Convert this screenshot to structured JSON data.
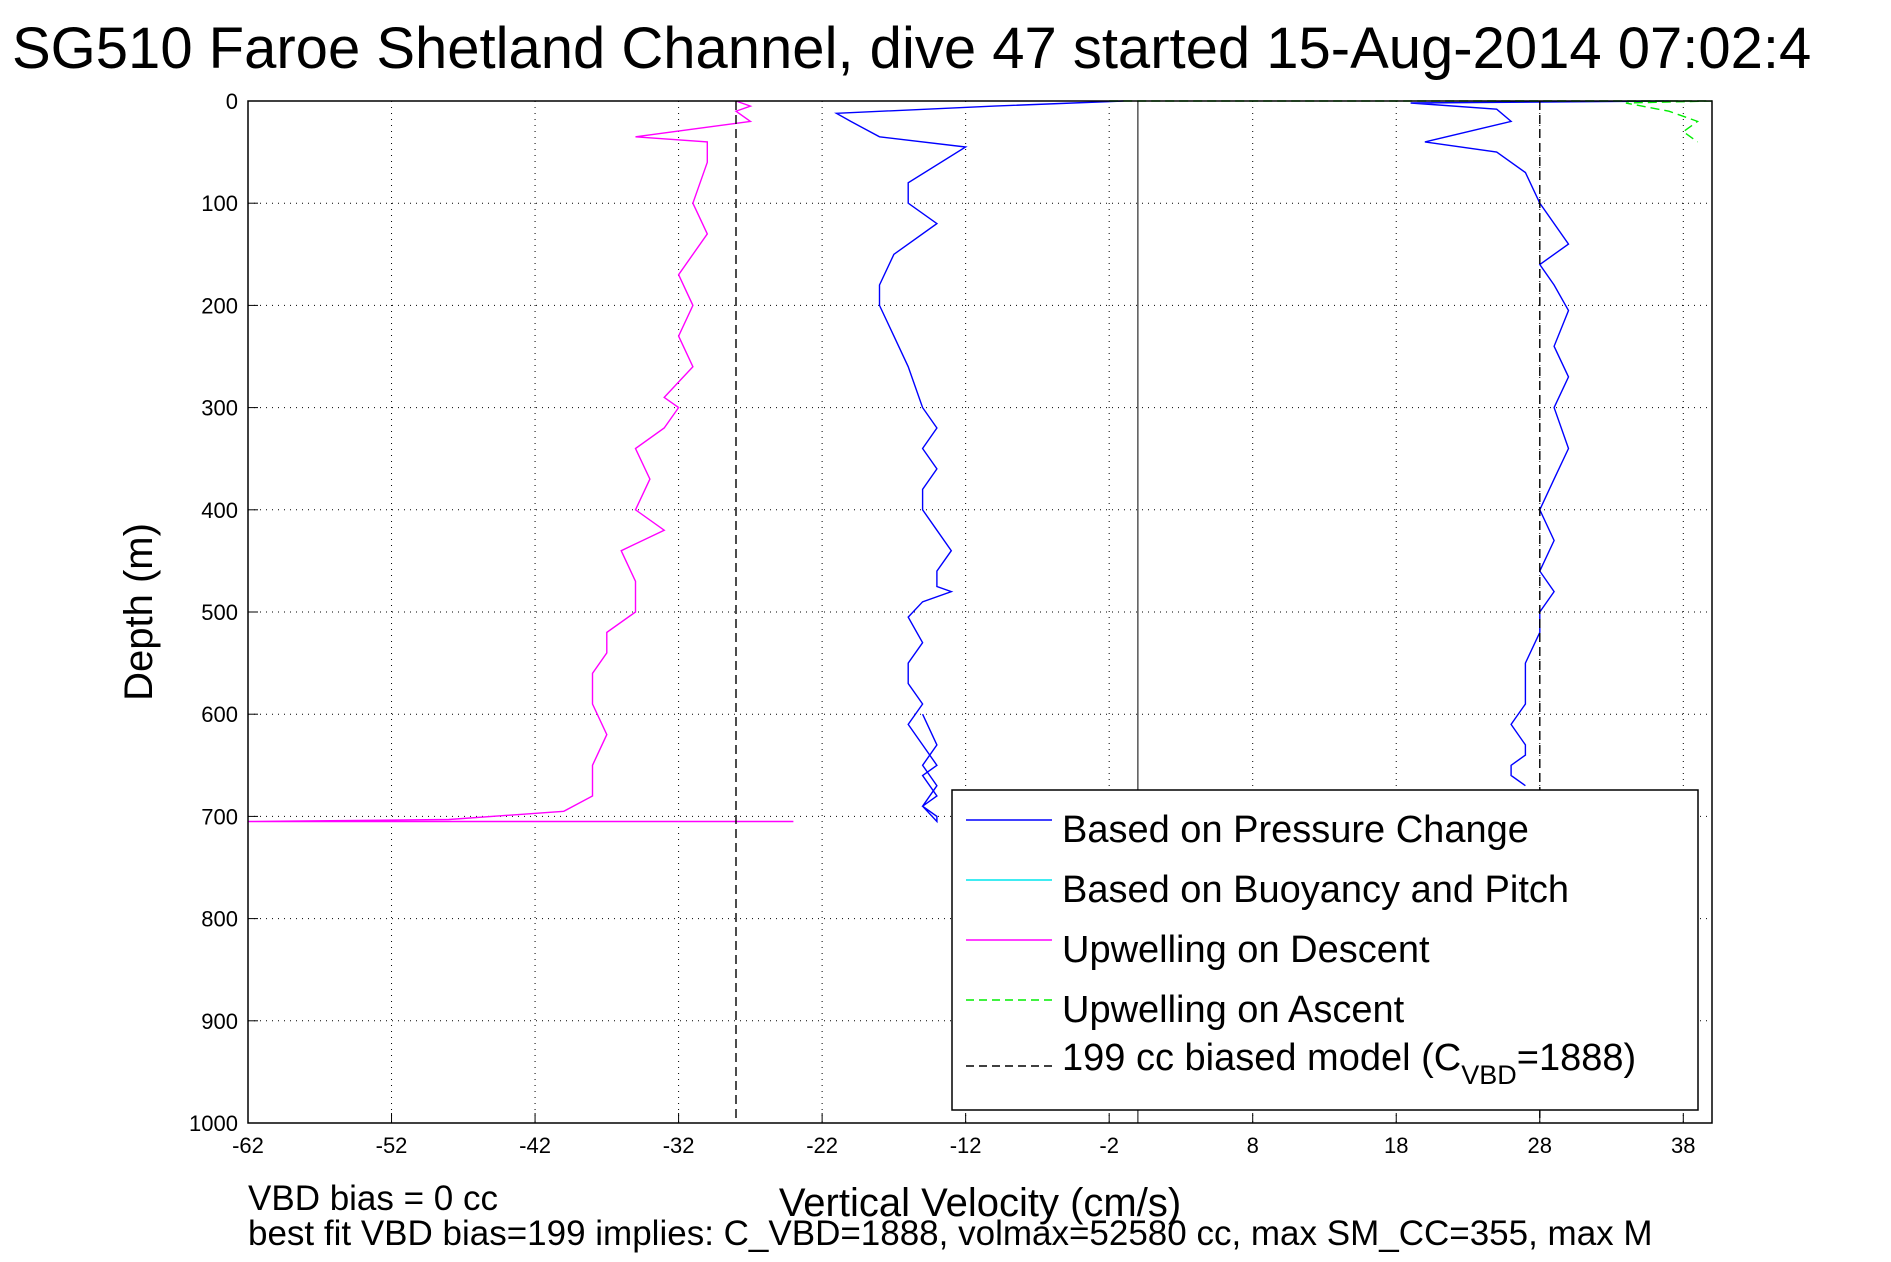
{
  "chart_data": {
    "type": "line",
    "title": "SG510 Faroe Shetland Channel, dive 47 started 15-Aug-2014 07:02:4",
    "xlabel": "Vertical Velocity (cm/s)",
    "ylabel": "Depth (m)",
    "xlim": [
      -62,
      40
    ],
    "ylim": [
      0,
      1000
    ],
    "y_reversed": true,
    "x_ticks": [
      "-62",
      "-52",
      "-42",
      "-32",
      "-22",
      "-12",
      "-2",
      "8",
      "18",
      "28",
      "38"
    ],
    "y_ticks": [
      "0",
      "100",
      "200",
      "300",
      "400",
      "500",
      "600",
      "700",
      "800",
      "900",
      "1000"
    ],
    "grid": true,
    "legend_position": "bottom-right",
    "legend": [
      {
        "label": "Based on Pressure Change",
        "color": "#0000ff",
        "style": "solid"
      },
      {
        "label": "Based on Buoyancy and Pitch",
        "color": "#00e5ee",
        "style": "solid"
      },
      {
        "label": "Upwelling on Descent",
        "color": "#ff00ff",
        "style": "solid"
      },
      {
        "label": "Upwelling on Ascent",
        "color": "#00ee00",
        "style": "dashed"
      },
      {
        "label_main": "199 cc biased model (C",
        "label_sub": "VBD",
        "label_tail": "=1888)",
        "color": "#000000",
        "style": "dashed"
      }
    ],
    "series": [
      {
        "name": "Based on Pressure Change (descent)",
        "color": "#0000ff",
        "x": [
          -1,
          -10,
          -21,
          -20,
          -18,
          -12,
          -16,
          -16,
          -14,
          -17,
          -18,
          -18,
          -17,
          -16,
          -15,
          -14,
          -15,
          -14,
          -15,
          -15,
          -14,
          -13,
          -14,
          -14,
          -13,
          -15,
          -16,
          -15,
          -16,
          -16,
          -15,
          -16,
          -15,
          -14,
          -15,
          -14,
          -15,
          -14,
          -14,
          -15,
          -14,
          -15,
          -14,
          -15
        ],
        "y": [
          0,
          5,
          12,
          20,
          35,
          45,
          80,
          100,
          120,
          150,
          180,
          200,
          230,
          260,
          300,
          320,
          340,
          360,
          380,
          400,
          420,
          440,
          460,
          475,
          480,
          490,
          505,
          530,
          550,
          570,
          590,
          610,
          630,
          650,
          660,
          680,
          690,
          700,
          705,
          690,
          670,
          650,
          630,
          600
        ]
      },
      {
        "name": "Based on Pressure Change (ascent)",
        "color": "#0000ff",
        "x": [
          37,
          19,
          25,
          26,
          20,
          25,
          27,
          28,
          30,
          28,
          29,
          30,
          29,
          30,
          29,
          30,
          29,
          28,
          29,
          28,
          29,
          28,
          28,
          27,
          27,
          27,
          26,
          27,
          27,
          26,
          26,
          27
        ],
        "y": [
          0,
          2,
          8,
          20,
          40,
          50,
          70,
          100,
          140,
          160,
          180,
          205,
          240,
          270,
          300,
          340,
          370,
          400,
          430,
          460,
          480,
          500,
          520,
          550,
          570,
          590,
          610,
          630,
          640,
          650,
          660,
          670
        ]
      },
      {
        "name": "Upwelling on Descent",
        "color": "#ff00ff",
        "x": [
          -28,
          -27,
          -28,
          -27,
          -35,
          -30,
          -30,
          -31,
          -30,
          -32,
          -31,
          -32,
          -31,
          -33,
          -32,
          -33,
          -35,
          -34,
          -35,
          -33,
          -36,
          -35,
          -35,
          -37,
          -37,
          -38,
          -38,
          -37,
          -38,
          -38,
          -40,
          -48,
          -62,
          -24
        ],
        "y": [
          0,
          5,
          10,
          20,
          35,
          40,
          60,
          100,
          130,
          170,
          200,
          230,
          260,
          290,
          300,
          320,
          340,
          370,
          400,
          420,
          440,
          470,
          500,
          520,
          540,
          560,
          590,
          620,
          650,
          680,
          695,
          703,
          705,
          705
        ]
      },
      {
        "name": "Upwelling on Ascent",
        "color": "#00ee00",
        "x": [
          -2,
          40,
          34,
          37,
          39,
          38,
          39
        ],
        "y": [
          0,
          0,
          2,
          10,
          20,
          30,
          40
        ]
      },
      {
        "name": "199 cc biased model descent",
        "color": "#000000",
        "x": [
          -28,
          -28
        ],
        "y": [
          0,
          1000
        ]
      },
      {
        "name": "199 cc biased model ascent",
        "color": "#000000",
        "x": [
          28,
          28
        ],
        "y": [
          0,
          1000
        ]
      },
      {
        "name": "zero line",
        "color": "#000000",
        "x": [
          0,
          0
        ],
        "y": [
          0,
          1000
        ]
      }
    ]
  },
  "footer": {
    "line1": "VBD bias = 0 cc",
    "line2": "best fit VBD bias=199 implies: C_VBD=1888, volmax=52580 cc, max SM_CC=355, max M"
  }
}
